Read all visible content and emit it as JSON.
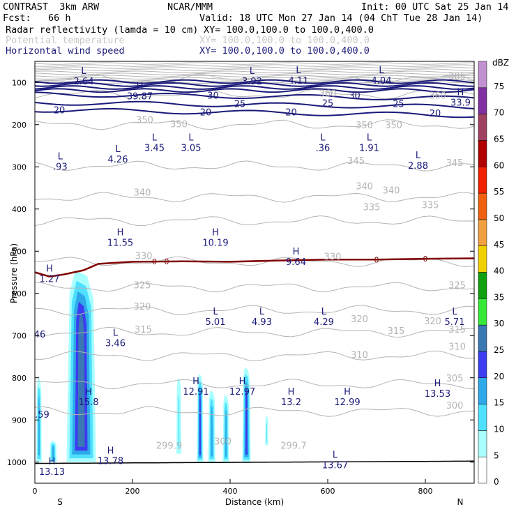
{
  "header": {
    "model": "CONTRAST  3km ARW",
    "org": "NCAR/MMM",
    "init": "Init: 00 UTC Sat 25 Jan 14",
    "fcst": "Fcst:   66 h",
    "valid": "Valid: 18 UTC Mon 27 Jan 14 (04 ChT Tue 28 Jan 14)",
    "field1": "Radar reflectivity (lamda = 10 cm)",
    "field1_xy": "XY= 100.0,100.0 to 100.0,400.0",
    "field2": "Potential temperature",
    "field2_xy": "XY= 100.0,100.0 to 100.0,400.0",
    "field3": "Horizontal wind speed",
    "field3_xy": "XY= 100.0,100.0 to 100.0,400.0"
  },
  "colors": {
    "wind": "#1a1a7a",
    "theta": "#b4b4b4",
    "freezing": "#800000",
    "terrain": "#000000"
  },
  "chart_data": {
    "type": "cross-section",
    "xlabel": "Distance (km)",
    "ylabel": "Pressure (hPa)",
    "xlim": [
      0,
      900
    ],
    "ylim": [
      1050,
      50
    ],
    "x_ticks": [
      0,
      200,
      400,
      600,
      800
    ],
    "y_ticks": [
      100,
      200,
      300,
      400,
      500,
      600,
      700,
      800,
      900,
      1000
    ],
    "endpoints": {
      "left": "S",
      "right": "N"
    },
    "colorbar": {
      "unit": "dBZ",
      "levels": [
        0,
        5,
        10,
        15,
        20,
        25,
        30,
        35,
        40,
        45,
        50,
        55,
        60,
        65,
        70,
        75
      ],
      "colors": [
        "#ffffff",
        "#a8ffff",
        "#4fe0ff",
        "#2ea8e8",
        "#3c3cf0",
        "#3a78b4",
        "#38e838",
        "#10a010",
        "#f0d000",
        "#f0a040",
        "#f06010",
        "#f02000",
        "#b00000",
        "#a04060",
        "#8030a0",
        "#c090d0"
      ]
    },
    "reflectivity_cells": [
      {
        "x0": 3,
        "x1": 14,
        "p_top": 800,
        "p_bot": 1000,
        "dbz": 15
      },
      {
        "x0": 30,
        "x1": 45,
        "p_top": 950,
        "p_bot": 1000,
        "dbz": 15
      },
      {
        "x0": 65,
        "x1": 125,
        "p_top": 545,
        "p_bot": 1000,
        "dbz": 25
      },
      {
        "x0": 290,
        "x1": 300,
        "p_top": 800,
        "p_bot": 980,
        "dbz": 10
      },
      {
        "x0": 332,
        "x1": 345,
        "p_top": 790,
        "p_bot": 1000,
        "dbz": 20
      },
      {
        "x0": 355,
        "x1": 370,
        "p_top": 830,
        "p_bot": 1000,
        "dbz": 15
      },
      {
        "x0": 385,
        "x1": 398,
        "p_top": 840,
        "p_bot": 1000,
        "dbz": 15
      },
      {
        "x0": 425,
        "x1": 442,
        "p_top": 775,
        "p_bot": 1000,
        "dbz": 20
      },
      {
        "x0": 472,
        "x1": 478,
        "p_top": 890,
        "p_bot": 960,
        "dbz": 10
      }
    ],
    "wind_speed_contours": [
      {
        "value": 20,
        "label_positions": [
          [
            50,
            165
          ],
          [
            350,
            170
          ],
          [
            525,
            170
          ],
          [
            820,
            172
          ]
        ]
      },
      {
        "value": 25,
        "label_positions": [
          [
            420,
            150
          ],
          [
            600,
            148
          ],
          [
            745,
            150
          ]
        ]
      },
      {
        "value": 30,
        "label_positions": [
          [
            365,
            130
          ],
          [
            655,
            130
          ]
        ]
      }
    ],
    "theta_contours": [
      300,
      305,
      310,
      315,
      320,
      325,
      330,
      335,
      340,
      345,
      350,
      360,
      385
    ],
    "theta_labels": [
      {
        "text": "385",
        "x": 865,
        "p": 85
      },
      {
        "text": "360",
        "x": 600,
        "p": 125
      },
      {
        "text": "360",
        "x": 825,
        "p": 130
      },
      {
        "text": "350",
        "x": 225,
        "p": 188
      },
      {
        "text": "350",
        "x": 295,
        "p": 198
      },
      {
        "text": "350",
        "x": 675,
        "p": 200
      },
      {
        "text": "350",
        "x": 735,
        "p": 200
      },
      {
        "text": "345",
        "x": 658,
        "p": 285
      },
      {
        "text": "345",
        "x": 860,
        "p": 290
      },
      {
        "text": "340",
        "x": 220,
        "p": 360
      },
      {
        "text": "340",
        "x": 675,
        "p": 345
      },
      {
        "text": "340",
        "x": 730,
        "p": 355
      },
      {
        "text": "335",
        "x": 690,
        "p": 395
      },
      {
        "text": "335",
        "x": 810,
        "p": 390
      },
      {
        "text": "330",
        "x": 223,
        "p": 510
      },
      {
        "text": "330",
        "x": 610,
        "p": 512
      },
      {
        "text": "325",
        "x": 220,
        "p": 580
      },
      {
        "text": "325",
        "x": 865,
        "p": 580
      },
      {
        "text": "320",
        "x": 220,
        "p": 630
      },
      {
        "text": "320",
        "x": 665,
        "p": 660
      },
      {
        "text": "320",
        "x": 815,
        "p": 665
      },
      {
        "text": "315",
        "x": 222,
        "p": 685
      },
      {
        "text": "315",
        "x": 740,
        "p": 688
      },
      {
        "text": "315",
        "x": 865,
        "p": 685
      },
      {
        "text": "310",
        "x": 665,
        "p": 745
      },
      {
        "text": "310",
        "x": 865,
        "p": 725
      },
      {
        "text": "305",
        "x": 860,
        "p": 800
      },
      {
        "text": "300",
        "x": 860,
        "p": 865
      },
      {
        "text": "299.9",
        "x": 275,
        "p": 960
      },
      {
        "text": "300",
        "x": 385,
        "p": 950
      },
      {
        "text": "299.7",
        "x": 530,
        "p": 960
      }
    ],
    "freezing_level": {
      "label": "0",
      "points": [
        [
          0,
          550
        ],
        [
          30,
          560
        ],
        [
          60,
          555
        ],
        [
          100,
          545
        ],
        [
          130,
          530
        ],
        [
          200,
          525
        ],
        [
          300,
          524
        ],
        [
          400,
          525
        ],
        [
          500,
          522
        ],
        [
          600,
          520
        ],
        [
          700,
          520
        ],
        [
          800,
          518
        ],
        [
          900,
          517
        ]
      ]
    },
    "extrema": [
      {
        "type": "L",
        "value": "2.64",
        "x": 100,
        "p": 80
      },
      {
        "type": "L",
        "value": "3.92",
        "x": 445,
        "p": 80
      },
      {
        "type": "L",
        "value": "4.11",
        "x": 540,
        "p": 78
      },
      {
        "type": "L",
        "value": "4.04",
        "x": 710,
        "p": 78
      },
      {
        "type": "H",
        "value": "39.87",
        "x": 215,
        "p": 115
      },
      {
        "type": "H",
        "value": "33.9",
        "x": 872,
        "p": 130
      },
      {
        "type": "L",
        "value": "4.26",
        "x": 170,
        "p": 265
      },
      {
        "type": "L",
        "value": "3.45",
        "x": 245,
        "p": 238
      },
      {
        "type": "L",
        "value": "3.05",
        "x": 320,
        "p": 238
      },
      {
        "type": "L",
        "value": ".36",
        "x": 590,
        "p": 238
      },
      {
        "type": "L",
        "value": "1.91",
        "x": 685,
        "p": 238
      },
      {
        "type": "L",
        "value": ".93",
        "x": 52,
        "p": 282
      },
      {
        "type": "L",
        "value": "2.88",
        "x": 785,
        "p": 280
      },
      {
        "type": "H",
        "value": "11.55",
        "x": 175,
        "p": 462
      },
      {
        "type": "H",
        "value": "10.19",
        "x": 370,
        "p": 462
      },
      {
        "type": "H",
        "value": "9.64",
        "x": 535,
        "p": 508
      },
      {
        "type": "H",
        "value": "1.27",
        "x": 30,
        "p": 548
      },
      {
        "type": "L",
        "value": "5.01",
        "x": 370,
        "p": 650
      },
      {
        "type": "L",
        "value": "4.93",
        "x": 465,
        "p": 650
      },
      {
        "type": "L",
        "value": "4.29",
        "x": 592,
        "p": 650
      },
      {
        "type": "L",
        "value": "5.71",
        "x": 860,
        "p": 650
      },
      {
        "type": "L",
        "value": "3.46",
        "x": 165,
        "p": 700
      },
      {
        "type": "",
        "value": "46",
        "x": 10,
        "p": 698
      },
      {
        "type": "H",
        "value": "12.91",
        "x": 330,
        "p": 815
      },
      {
        "type": "H",
        "value": "12.97",
        "x": 425,
        "p": 815
      },
      {
        "type": "H",
        "value": "15.8",
        "x": 110,
        "p": 840
      },
      {
        "type": "H",
        "value": "13.2",
        "x": 525,
        "p": 840
      },
      {
        "type": "H",
        "value": "12.99",
        "x": 640,
        "p": 840
      },
      {
        "type": "H",
        "value": "13.53",
        "x": 825,
        "p": 820
      },
      {
        "type": "",
        "value": ".59",
        "x": 15,
        "p": 888
      },
      {
        "type": "H",
        "value": "13.78",
        "x": 155,
        "p": 980
      },
      {
        "type": "L",
        "value": "13.67",
        "x": 615,
        "p": 990
      },
      {
        "type": "H",
        "value": "13.13",
        "x": 35,
        "p": 1005
      }
    ]
  }
}
